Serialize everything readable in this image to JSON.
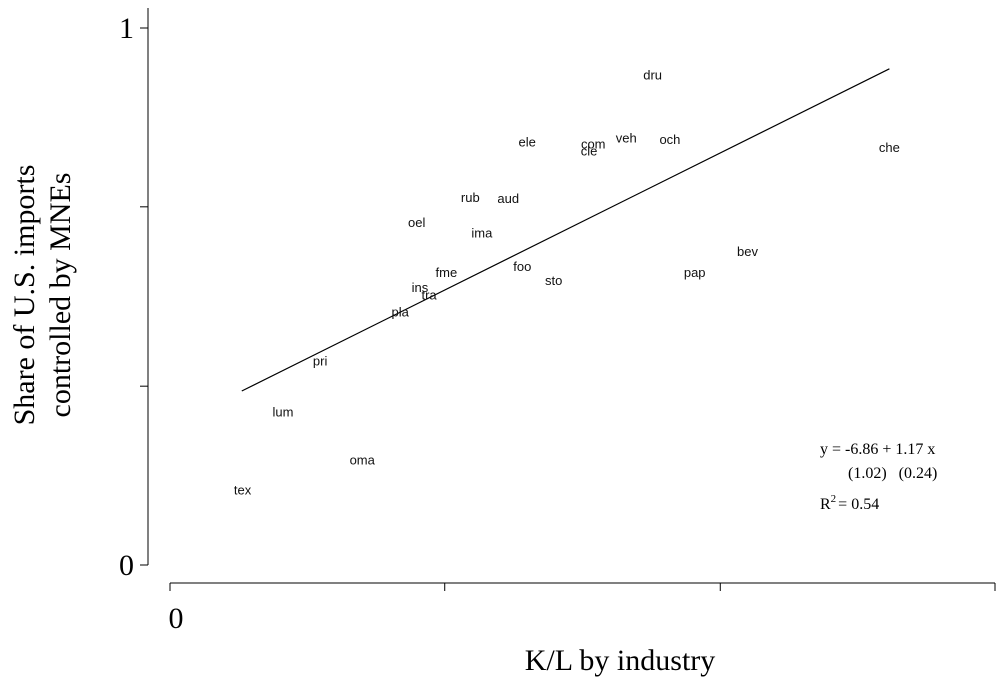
{
  "chart_data": {
    "type": "scatter",
    "title": "",
    "xlabel": "K/L by industry",
    "ylabel": [
      "Share of U.S. imports",
      "controlled by MNEs"
    ],
    "xlim": [
      0,
      1
    ],
    "ylim": [
      0,
      1
    ],
    "x_tick_labels": [
      {
        "value": 0,
        "label": "0"
      }
    ],
    "y_tick_labels": [
      {
        "value": 0,
        "label": "0"
      },
      {
        "value": 1,
        "label": "1"
      }
    ],
    "x_ticks": [
      0,
      0.333,
      0.667,
      1.0
    ],
    "y_ticks": [
      0,
      0.333,
      0.667,
      1.0
    ],
    "grid": false,
    "points": [
      {
        "label": "dru",
        "x": 0.585,
        "y": 0.913
      },
      {
        "label": "ele",
        "x": 0.433,
        "y": 0.789
      },
      {
        "label": "com",
        "x": 0.513,
        "y": 0.785
      },
      {
        "label": "cle",
        "x": 0.508,
        "y": 0.772
      },
      {
        "label": "veh",
        "x": 0.553,
        "y": 0.796
      },
      {
        "label": "och",
        "x": 0.606,
        "y": 0.793
      },
      {
        "label": "che",
        "x": 0.872,
        "y": 0.778
      },
      {
        "label": "rub",
        "x": 0.364,
        "y": 0.685
      },
      {
        "label": "aud",
        "x": 0.41,
        "y": 0.683
      },
      {
        "label": "oel",
        "x": 0.299,
        "y": 0.639
      },
      {
        "label": "ima",
        "x": 0.378,
        "y": 0.619
      },
      {
        "label": "bev",
        "x": 0.7,
        "y": 0.585
      },
      {
        "label": "foo",
        "x": 0.427,
        "y": 0.557
      },
      {
        "label": "fme",
        "x": 0.335,
        "y": 0.546
      },
      {
        "label": "pap",
        "x": 0.636,
        "y": 0.546
      },
      {
        "label": "sto",
        "x": 0.465,
        "y": 0.531
      },
      {
        "label": "ins",
        "x": 0.303,
        "y": 0.518
      },
      {
        "label": "tra",
        "x": 0.314,
        "y": 0.504
      },
      {
        "label": "pla",
        "x": 0.279,
        "y": 0.472
      },
      {
        "label": "pri",
        "x": 0.182,
        "y": 0.381
      },
      {
        "label": "lum",
        "x": 0.137,
        "y": 0.286
      },
      {
        "label": "oma",
        "x": 0.233,
        "y": 0.196
      },
      {
        "label": "tex",
        "x": 0.088,
        "y": 0.141
      }
    ],
    "trendline": {
      "x": [
        0.087,
        0.872
      ],
      "y": [
        0.324,
        0.924
      ]
    },
    "equation": {
      "line1": "y = -6.86  + 1.17 x",
      "line2": "(1.02)   (0.24)",
      "r2_label": "R",
      "r2_sup": "2",
      "r2_value": "= 0.54"
    }
  }
}
